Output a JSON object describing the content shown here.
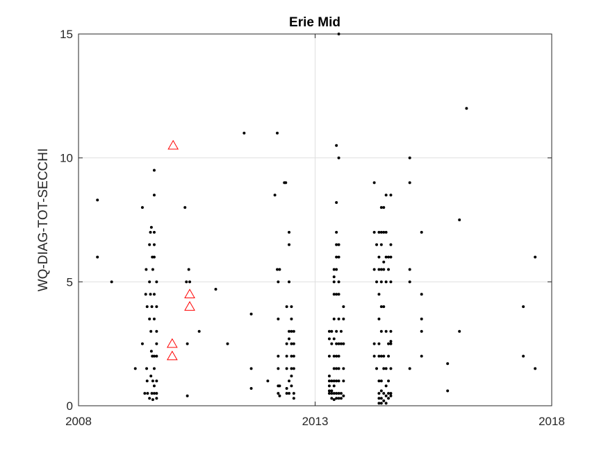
{
  "chart_data": {
    "type": "scatter",
    "title": "Erie Mid",
    "xlabel": "",
    "ylabel": "WQ-DIAG-TOT-SECCHI",
    "xlim": [
      2008,
      2018
    ],
    "ylim": [
      0,
      15
    ],
    "x_ticks": [
      2008,
      2013,
      2018
    ],
    "y_ticks": [
      0,
      5,
      10,
      15
    ],
    "x_tick_labels": [
      "2008",
      "2013",
      "2018"
    ],
    "y_tick_labels": [
      "0",
      "5",
      "10",
      "15"
    ],
    "grid": "major",
    "colors": {
      "black_points": "#000000",
      "red_triangles": "#ff0000",
      "grid": "#dfdfdf",
      "axes": "#262626"
    },
    "series": [
      {
        "marker": "dot",
        "color": "#000000",
        "points": [
          [
            2008.4,
            8.3
          ],
          [
            2008.4,
            6.0
          ],
          [
            2008.7,
            5.0
          ],
          [
            2009.2,
            1.5
          ],
          [
            2009.35,
            8.0
          ],
          [
            2009.35,
            2.5
          ],
          [
            2009.4,
            0.5
          ],
          [
            2009.42,
            4.5
          ],
          [
            2009.43,
            5.5
          ],
          [
            2009.44,
            1.5
          ],
          [
            2009.45,
            4.0
          ],
          [
            2009.45,
            1.0
          ],
          [
            2009.46,
            0.5
          ],
          [
            2009.5,
            6.5
          ],
          [
            2009.5,
            3.5
          ],
          [
            2009.5,
            5.0
          ],
          [
            2009.5,
            0.3
          ],
          [
            2009.52,
            7.0
          ],
          [
            2009.52,
            4.5
          ],
          [
            2009.53,
            3.0
          ],
          [
            2009.53,
            1.2
          ],
          [
            2009.54,
            7.2
          ],
          [
            2009.54,
            2.2
          ],
          [
            2009.55,
            4.0
          ],
          [
            2009.55,
            0.5
          ],
          [
            2009.56,
            6.0
          ],
          [
            2009.56,
            2.0
          ],
          [
            2009.57,
            5.5
          ],
          [
            2009.57,
            1.0
          ],
          [
            2009.57,
            0.25
          ],
          [
            2009.6,
            9.5
          ],
          [
            2009.6,
            8.5
          ],
          [
            2009.6,
            7.0
          ],
          [
            2009.6,
            6.5
          ],
          [
            2009.6,
            6.0
          ],
          [
            2009.6,
            4.5
          ],
          [
            2009.6,
            3.5
          ],
          [
            2009.6,
            2.0
          ],
          [
            2009.6,
            1.5
          ],
          [
            2009.6,
            0.8
          ],
          [
            2009.6,
            0.5
          ],
          [
            2009.65,
            5.0
          ],
          [
            2009.65,
            4.0
          ],
          [
            2009.65,
            3.0
          ],
          [
            2009.65,
            2.5
          ],
          [
            2009.65,
            2.0
          ],
          [
            2009.65,
            1.0
          ],
          [
            2009.65,
            0.5
          ],
          [
            2009.65,
            0.3
          ],
          [
            2010.25,
            8.0
          ],
          [
            2010.28,
            5.0
          ],
          [
            2010.3,
            2.5
          ],
          [
            2010.3,
            0.4
          ],
          [
            2010.33,
            5.5
          ],
          [
            2010.35,
            5.0
          ],
          [
            2010.55,
            3.0
          ],
          [
            2010.9,
            4.7
          ],
          [
            2011.15,
            2.5
          ],
          [
            2011.5,
            11.0
          ],
          [
            2011.65,
            3.7
          ],
          [
            2011.65,
            1.5
          ],
          [
            2011.65,
            0.7
          ],
          [
            2012.0,
            1.0
          ],
          [
            2012.15,
            8.5
          ],
          [
            2012.2,
            11.0
          ],
          [
            2012.2,
            5.5
          ],
          [
            2012.22,
            5.0
          ],
          [
            2012.22,
            3.5
          ],
          [
            2012.22,
            2.0
          ],
          [
            2012.22,
            1.5
          ],
          [
            2012.22,
            0.8
          ],
          [
            2012.22,
            0.5
          ],
          [
            2012.25,
            5.5
          ],
          [
            2012.25,
            0.8
          ],
          [
            2012.25,
            0.4
          ],
          [
            2012.35,
            9.0
          ],
          [
            2012.38,
            9.0
          ],
          [
            2012.4,
            4.0
          ],
          [
            2012.4,
            2.5
          ],
          [
            2012.4,
            2.0
          ],
          [
            2012.4,
            1.5
          ],
          [
            2012.4,
            0.7
          ],
          [
            2012.4,
            0.5
          ],
          [
            2012.45,
            7.0
          ],
          [
            2012.45,
            6.5
          ],
          [
            2012.45,
            5.0
          ],
          [
            2012.45,
            3.0
          ],
          [
            2012.45,
            2.7
          ],
          [
            2012.45,
            1.0
          ],
          [
            2012.45,
            0.5
          ],
          [
            2012.5,
            4.0
          ],
          [
            2012.5,
            3.5
          ],
          [
            2012.5,
            3.0
          ],
          [
            2012.5,
            2.5
          ],
          [
            2012.5,
            2.0
          ],
          [
            2012.5,
            1.5
          ],
          [
            2012.5,
            1.2
          ],
          [
            2012.5,
            0.8
          ],
          [
            2012.55,
            3.0
          ],
          [
            2012.55,
            2.5
          ],
          [
            2012.55,
            2.0
          ],
          [
            2012.55,
            1.5
          ],
          [
            2012.55,
            0.5
          ],
          [
            2012.55,
            0.3
          ],
          [
            2013.3,
            3.0
          ],
          [
            2013.3,
            2.7
          ],
          [
            2013.3,
            2.0
          ],
          [
            2013.3,
            1.2
          ],
          [
            2013.3,
            1.0
          ],
          [
            2013.3,
            0.8
          ],
          [
            2013.3,
            0.6
          ],
          [
            2013.3,
            0.5
          ],
          [
            2013.35,
            3.0
          ],
          [
            2013.35,
            2.5
          ],
          [
            2013.35,
            1.0
          ],
          [
            2013.35,
            0.6
          ],
          [
            2013.35,
            0.5
          ],
          [
            2013.35,
            0.3
          ],
          [
            2013.4,
            5.5
          ],
          [
            2013.4,
            5.2
          ],
          [
            2013.4,
            5.0
          ],
          [
            2013.4,
            4.5
          ],
          [
            2013.4,
            3.5
          ],
          [
            2013.4,
            2.7
          ],
          [
            2013.4,
            2.0
          ],
          [
            2013.4,
            1.5
          ],
          [
            2013.4,
            1.0
          ],
          [
            2013.4,
            0.8
          ],
          [
            2013.4,
            0.5
          ],
          [
            2013.4,
            0.25
          ],
          [
            2013.45,
            10.5
          ],
          [
            2013.45,
            8.2
          ],
          [
            2013.45,
            7.0
          ],
          [
            2013.45,
            6.5
          ],
          [
            2013.45,
            6.0
          ],
          [
            2013.45,
            5.5
          ],
          [
            2013.45,
            4.5
          ],
          [
            2013.45,
            3.0
          ],
          [
            2013.45,
            2.5
          ],
          [
            2013.45,
            2.0
          ],
          [
            2013.45,
            1.5
          ],
          [
            2013.45,
            1.0
          ],
          [
            2013.45,
            0.5
          ],
          [
            2013.45,
            0.3
          ],
          [
            2013.5,
            15.0
          ],
          [
            2013.5,
            10.0
          ],
          [
            2013.5,
            6.5
          ],
          [
            2013.5,
            6.0
          ],
          [
            2013.5,
            5.0
          ],
          [
            2013.5,
            4.5
          ],
          [
            2013.5,
            3.5
          ],
          [
            2013.5,
            2.5
          ],
          [
            2013.5,
            2.0
          ],
          [
            2013.5,
            1.5
          ],
          [
            2013.5,
            1.0
          ],
          [
            2013.5,
            0.5
          ],
          [
            2013.5,
            0.3
          ],
          [
            2013.55,
            3.0
          ],
          [
            2013.55,
            2.5
          ],
          [
            2013.55,
            0.3
          ],
          [
            2013.55,
            0.5
          ],
          [
            2013.6,
            4.0
          ],
          [
            2013.6,
            3.5
          ],
          [
            2013.6,
            2.5
          ],
          [
            2013.6,
            1.5
          ],
          [
            2013.6,
            1.0
          ],
          [
            2013.6,
            0.4
          ],
          [
            2014.25,
            9.0
          ],
          [
            2014.25,
            7.0
          ],
          [
            2014.25,
            5.5
          ],
          [
            2014.25,
            2.5
          ],
          [
            2014.25,
            2.0
          ],
          [
            2014.3,
            6.5
          ],
          [
            2014.3,
            5.0
          ],
          [
            2014.3,
            1.5
          ],
          [
            2014.35,
            7.0
          ],
          [
            2014.35,
            6.0
          ],
          [
            2014.35,
            5.5
          ],
          [
            2014.35,
            4.5
          ],
          [
            2014.35,
            3.5
          ],
          [
            2014.35,
            2.5
          ],
          [
            2014.35,
            2.0
          ],
          [
            2014.35,
            1.0
          ],
          [
            2014.35,
            0.5
          ],
          [
            2014.35,
            0.3
          ],
          [
            2014.35,
            0.1
          ],
          [
            2014.4,
            8.0
          ],
          [
            2014.4,
            7.0
          ],
          [
            2014.4,
            6.5
          ],
          [
            2014.4,
            5.5
          ],
          [
            2014.4,
            5.0
          ],
          [
            2014.4,
            4.0
          ],
          [
            2014.4,
            3.0
          ],
          [
            2014.4,
            2.0
          ],
          [
            2014.4,
            1.0
          ],
          [
            2014.4,
            0.6
          ],
          [
            2014.4,
            0.3
          ],
          [
            2014.4,
            0.1
          ],
          [
            2014.45,
            8.0
          ],
          [
            2014.45,
            7.0
          ],
          [
            2014.45,
            5.8
          ],
          [
            2014.45,
            5.5
          ],
          [
            2014.45,
            4.0
          ],
          [
            2014.45,
            2.0
          ],
          [
            2014.45,
            1.5
          ],
          [
            2014.45,
            0.5
          ],
          [
            2014.45,
            0.2
          ],
          [
            2014.5,
            8.5
          ],
          [
            2014.5,
            7.0
          ],
          [
            2014.5,
            6.0
          ],
          [
            2014.5,
            5.0
          ],
          [
            2014.5,
            3.0
          ],
          [
            2014.5,
            1.5
          ],
          [
            2014.5,
            0.8
          ],
          [
            2014.5,
            0.4
          ],
          [
            2014.5,
            0.1
          ],
          [
            2014.55,
            6.0
          ],
          [
            2014.55,
            5.5
          ],
          [
            2014.55,
            2.5
          ],
          [
            2014.55,
            2.0
          ],
          [
            2014.55,
            1.0
          ],
          [
            2014.55,
            0.5
          ],
          [
            2014.55,
            0.3
          ],
          [
            2014.6,
            8.5
          ],
          [
            2014.6,
            6.5
          ],
          [
            2014.6,
            6.0
          ],
          [
            2014.6,
            5.0
          ],
          [
            2014.6,
            3.0
          ],
          [
            2014.6,
            2.6
          ],
          [
            2014.6,
            2.5
          ],
          [
            2014.6,
            1.5
          ],
          [
            2014.6,
            0.5
          ],
          [
            2014.6,
            0.4
          ],
          [
            2015.0,
            10.0
          ],
          [
            2015.0,
            9.0
          ],
          [
            2015.0,
            5.5
          ],
          [
            2015.0,
            5.0
          ],
          [
            2015.0,
            1.5
          ],
          [
            2015.25,
            7.0
          ],
          [
            2015.25,
            4.5
          ],
          [
            2015.25,
            3.5
          ],
          [
            2015.25,
            3.0
          ],
          [
            2015.25,
            2.0
          ],
          [
            2015.8,
            1.7
          ],
          [
            2015.8,
            0.6
          ],
          [
            2016.05,
            7.5
          ],
          [
            2016.05,
            3.0
          ],
          [
            2016.2,
            12.0
          ],
          [
            2017.4,
            4.0
          ],
          [
            2017.4,
            2.0
          ],
          [
            2017.65,
            6.0
          ],
          [
            2017.65,
            1.5
          ]
        ]
      },
      {
        "marker": "triangle",
        "color": "#ff0000",
        "points": [
          [
            2010.0,
            10.5
          ],
          [
            2009.98,
            2.5
          ],
          [
            2009.98,
            2.0
          ],
          [
            2010.35,
            4.5
          ],
          [
            2010.35,
            4.0
          ]
        ]
      }
    ]
  }
}
